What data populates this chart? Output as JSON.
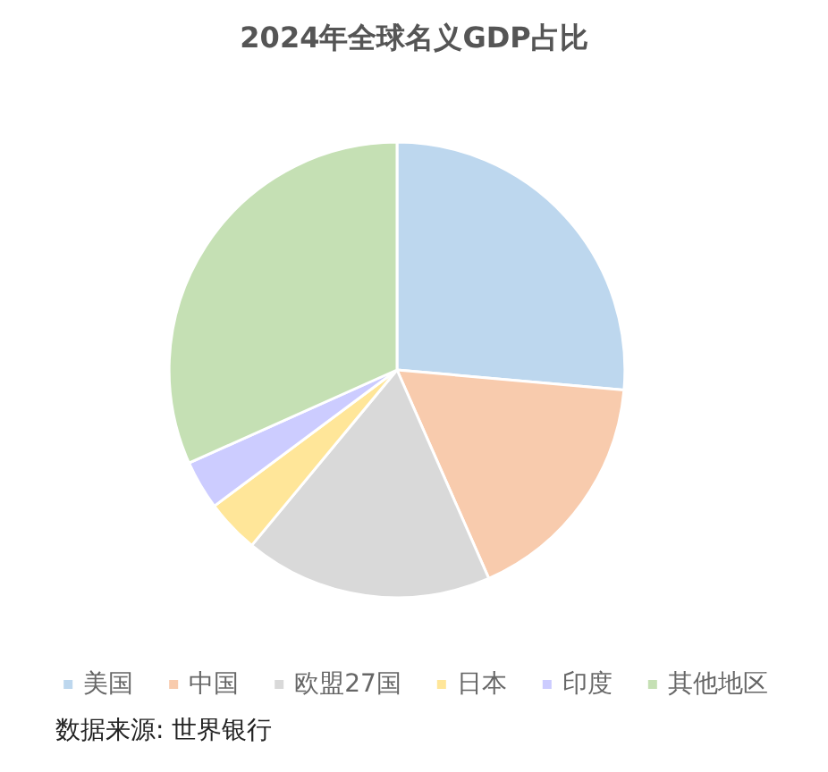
{
  "chart_data": {
    "type": "pie",
    "title": "2024年全球名义GDP占比",
    "categories": [
      "美国",
      "中国",
      "欧盟27国",
      "日本",
      "印度",
      "其他地区"
    ],
    "values": [
      26.4,
      17.0,
      17.6,
      3.8,
      3.5,
      31.7
    ],
    "colors": [
      "#bdd7ee",
      "#f8cbad",
      "#d9d9d9",
      "#ffe699",
      "#ccccff",
      "#c5e0b4"
    ],
    "legend": "bottom",
    "annotations": [
      "数据来源: 世界银行"
    ]
  }
}
